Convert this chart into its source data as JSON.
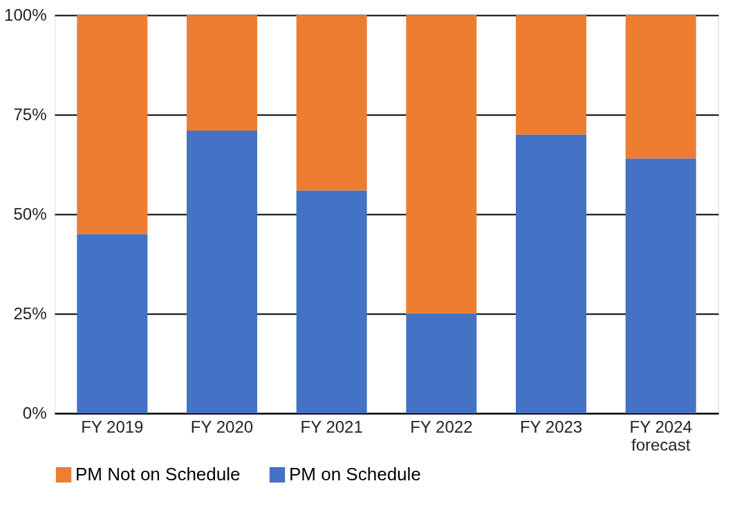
{
  "chart_data": {
    "type": "bar",
    "stacked": true,
    "categories": [
      "FY 2019",
      "FY 2020",
      "FY 2021",
      "FY 2022",
      "FY 2023",
      "FY 2024\nforecast"
    ],
    "series": [
      {
        "name": "PM on Schedule",
        "color": "#4472c4",
        "values": [
          45,
          71,
          56,
          25,
          70,
          64
        ]
      },
      {
        "name": "PM Not on Schedule",
        "color": "#ed7d31",
        "values": [
          55,
          29,
          44,
          75,
          30,
          36
        ]
      }
    ],
    "ylim": [
      0,
      100
    ],
    "yticks": [
      {
        "value": 0,
        "label": "0%"
      },
      {
        "value": 25,
        "label": "25%"
      },
      {
        "value": 50,
        "label": "50%"
      },
      {
        "value": 75,
        "label": "75%"
      },
      {
        "value": 100,
        "label": "100%"
      }
    ],
    "grid": "y",
    "legend": "bottom"
  }
}
